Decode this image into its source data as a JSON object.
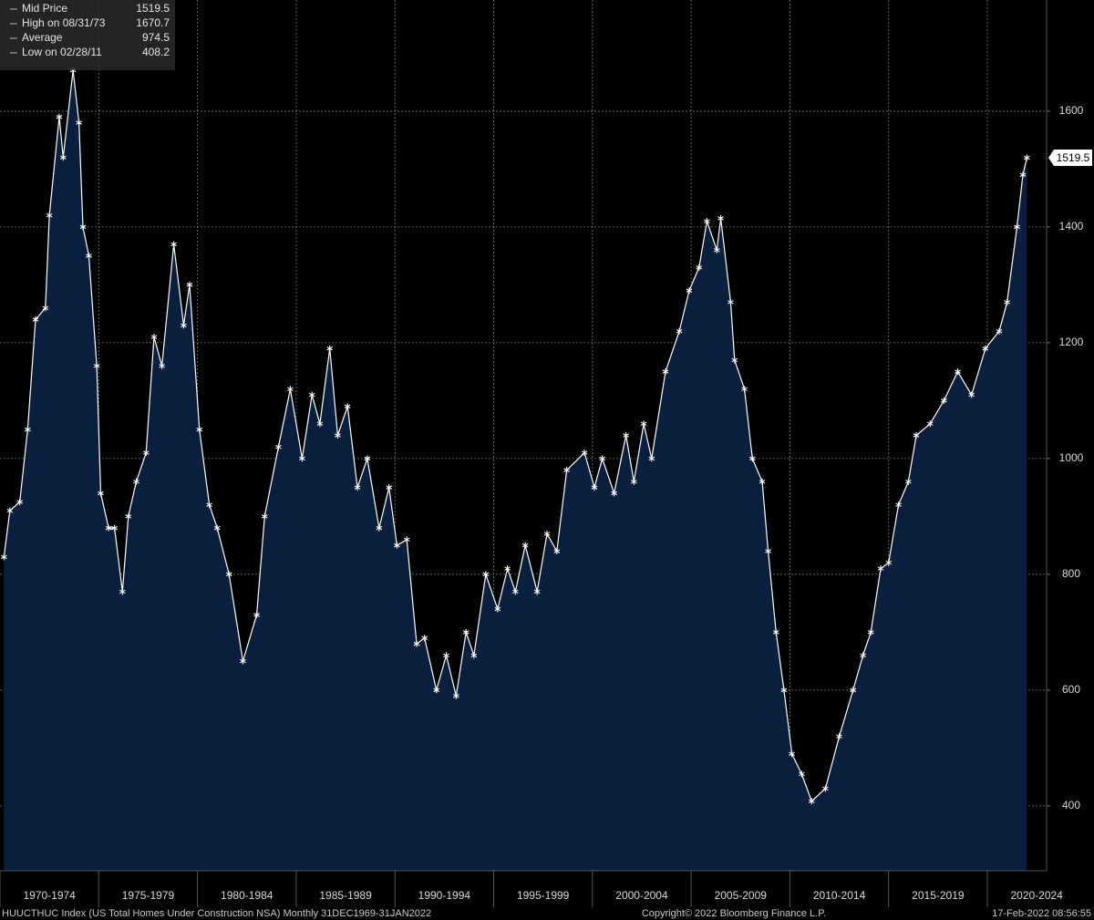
{
  "chart_data": {
    "type": "area",
    "series": [
      {
        "name": "Mid Price",
        "color": "#ffffff",
        "fill": "#0a1f3d",
        "x": [
          1970.2,
          1970.5,
          1971.0,
          1971.4,
          1971.8,
          1972.3,
          1972.5,
          1973.0,
          1973.2,
          1973.7,
          1974.0,
          1974.2,
          1974.5,
          1974.9,
          1975.1,
          1975.5,
          1975.8,
          1976.2,
          1976.5,
          1976.9,
          1977.4,
          1977.8,
          1978.2,
          1978.8,
          1979.3,
          1979.6,
          1980.1,
          1980.6,
          1981.0,
          1981.6,
          1982.3,
          1983.0,
          1983.4,
          1984.1,
          1984.7,
          1985.3,
          1985.8,
          1986.2,
          1986.7,
          1987.1,
          1987.6,
          1988.1,
          1988.6,
          1989.2,
          1989.7,
          1990.1,
          1990.6,
          1991.1,
          1991.5,
          1992.1,
          1992.6,
          1993.1,
          1993.6,
          1994.0,
          1994.6,
          1995.2,
          1995.7,
          1996.1,
          1996.6,
          1997.2,
          1997.7,
          1998.2,
          1998.7,
          1999.6,
          2000.1,
          2000.5,
          2001.1,
          2001.7,
          2002.1,
          2002.6,
          2003.0,
          2003.7,
          2004.4,
          2004.9,
          2005.4,
          2005.8,
          2006.3,
          2006.5,
          2007.0,
          2007.2,
          2007.7,
          2008.1,
          2008.6,
          2008.9,
          2009.3,
          2009.7,
          2010.1,
          2010.6,
          2011.1,
          2011.8,
          2012.5,
          2013.2,
          2013.7,
          2014.1,
          2014.6,
          2015.0,
          2015.5,
          2016.0,
          2016.4,
          2017.1,
          2017.8,
          2018.5,
          2019.2,
          2019.9,
          2020.6,
          2021.0,
          2021.5,
          2021.8,
          2022.0
        ],
        "values": [
          830,
          910,
          925,
          1050,
          1240,
          1260,
          1420,
          1590,
          1520,
          1670.7,
          1580,
          1400,
          1350,
          1160,
          940,
          880,
          880,
          770,
          900,
          960,
          1010,
          1210,
          1160,
          1370,
          1230,
          1300,
          1050,
          920,
          880,
          800,
          650,
          730,
          900,
          1020,
          1120,
          1000,
          1110,
          1060,
          1190,
          1040,
          1090,
          950,
          1000,
          880,
          950,
          850,
          860,
          680,
          690,
          600,
          660,
          590,
          700,
          660,
          800,
          740,
          810,
          770,
          850,
          770,
          870,
          840,
          980,
          1010,
          950,
          1000,
          940,
          1040,
          960,
          1060,
          1000,
          1150,
          1220,
          1290,
          1330,
          1410,
          1360,
          1415,
          1270,
          1170,
          1120,
          1000,
          960,
          840,
          700,
          600,
          490,
          455,
          408.2,
          430,
          520,
          600,
          660,
          700,
          810,
          820,
          920,
          960,
          1040,
          1060,
          1100,
          1150,
          1110,
          1190,
          1220,
          1270,
          1400,
          1490,
          1519.5
        ]
      }
    ],
    "legend": [
      {
        "label": "Mid Price",
        "value": 1519.5
      },
      {
        "label": "High on 08/31/73",
        "value": 1670.7
      },
      {
        "label": "Average",
        "value": 974.5
      },
      {
        "label": "Low on 02/28/11",
        "value": 408.2
      }
    ],
    "xlim": [
      1970,
      2023
    ],
    "xticks": [
      {
        "value": 1970,
        "label": "1970-1974"
      },
      {
        "value": 1975,
        "label": "1975-1979"
      },
      {
        "value": 1980,
        "label": "1980-1984"
      },
      {
        "value": 1985,
        "label": "1985-1989"
      },
      {
        "value": 1990,
        "label": "1990-1994"
      },
      {
        "value": 1995,
        "label": "1995-1999"
      },
      {
        "value": 2000,
        "label": "2000-2004"
      },
      {
        "value": 2005,
        "label": "2005-2009"
      },
      {
        "value": 2010,
        "label": "2010-2014"
      },
      {
        "value": 2015,
        "label": "2015-2019"
      },
      {
        "value": 2020,
        "label": "2020-2024"
      }
    ],
    "ylim": [
      288,
      1792
    ],
    "yticks": [
      400,
      600,
      800,
      1000,
      1200,
      1400,
      1600
    ],
    "grid": true,
    "footer": {
      "source": "HUUCTHUC Index (US Total Homes Under Construction NSA)  Monthly 31DEC1969-31JAN2022",
      "copyright": "Copyright© 2022 Bloomberg Finance L.P.",
      "timestamp": "17-Feb-2022 08:56:55"
    }
  }
}
